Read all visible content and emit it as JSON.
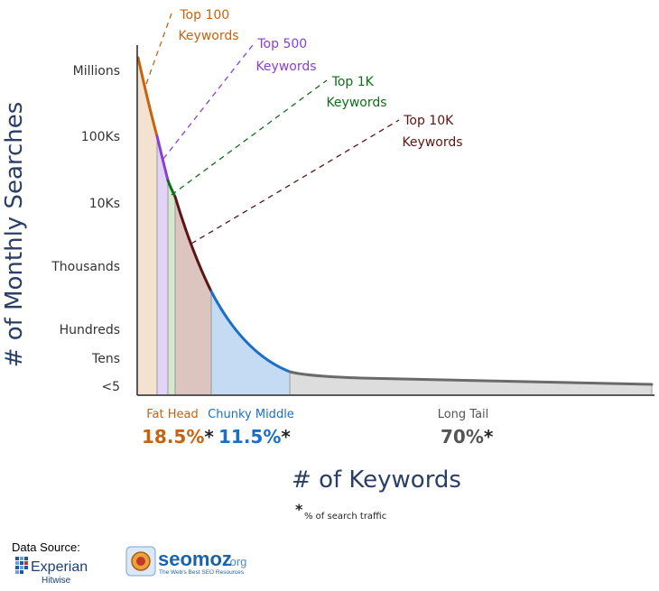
{
  "chart_data": {
    "type": "area",
    "xlabel": "# of Keywords",
    "ylabel": "# of Monthly Searches",
    "y_ticks": [
      "Millions",
      "100Ks",
      "10Ks",
      "Thousands",
      "Hundreds",
      "Tens",
      "<5"
    ],
    "grid": false,
    "annotations": [
      {
        "line1": "Top 100",
        "line2": "Keywords",
        "color": "#c8620f"
      },
      {
        "line1": "Top 500",
        "line2": "Keywords",
        "color": "#8a3fd6"
      },
      {
        "line1": "Top 1K",
        "line2": "Keywords",
        "color": "#0f6e1a"
      },
      {
        "line1": "Top 10K",
        "line2": "Keywords",
        "color": "#5c1414"
      }
    ],
    "segments": [
      {
        "name": "Fat Head",
        "percent": "18.5%",
        "color": "#c8620f"
      },
      {
        "name": "Chunky Middle",
        "percent": "11.5%",
        "color": "#1a6fc6"
      },
      {
        "name": "Long Tail",
        "percent": "70%",
        "color": "#555555"
      }
    ],
    "footnote_mark": "*",
    "footnote": "% of search traffic"
  },
  "footer": {
    "data_source_label": "Data Source:",
    "experian_name": "Experian",
    "experian_sub": "Hitwise",
    "seomoz_name": "seomoz",
    "seomoz_org": ".org",
    "seomoz_tagline": "The Web's Best SEO Resources"
  },
  "colors": {
    "top100_fill": "#f3e2cf",
    "top500_fill": "#e3d3f6",
    "top1k_fill": "#d5e7cd",
    "top10k_fill": "#dcc4bf",
    "middle_fill": "#c4dbf3",
    "tail_fill": "#dddddd"
  }
}
